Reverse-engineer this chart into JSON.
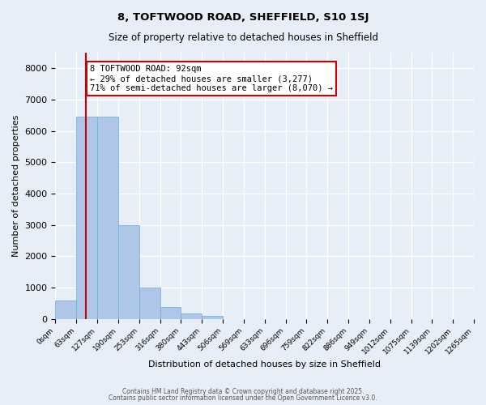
{
  "title1": "8, TOFTWOOD ROAD, SHEFFIELD, S10 1SJ",
  "title2": "Size of property relative to detached houses in Sheffield",
  "xlabel": "Distribution of detached houses by size in Sheffield",
  "ylabel": "Number of detached properties",
  "bar_values": [
    580,
    6450,
    6450,
    3000,
    1000,
    380,
    160,
    100,
    0,
    0,
    0,
    0,
    0,
    0,
    0,
    0,
    0,
    0,
    0,
    0
  ],
  "bar_labels": [
    "0sqm",
    "63sqm",
    "127sqm",
    "190sqm",
    "253sqm",
    "316sqm",
    "380sqm",
    "443sqm",
    "506sqm",
    "569sqm",
    "633sqm",
    "696sqm",
    "759sqm",
    "822sqm",
    "886sqm",
    "949sqm",
    "1012sqm",
    "1075sqm",
    "1139sqm",
    "1202sqm",
    "1265sqm"
  ],
  "bar_color": "#aec6e8",
  "bar_edge_color": "#6aacda",
  "vline_x": 1.46,
  "vline_color": "#cc0000",
  "annotation_text": "8 TOFTWOOD ROAD: 92sqm\n← 29% of detached houses are smaller (3,277)\n71% of semi-detached houses are larger (8,070) →",
  "annotation_box_color": "#ffffff",
  "annotation_box_edge": "#cc0000",
  "ylim": [
    0,
    8500
  ],
  "yticks": [
    0,
    1000,
    2000,
    3000,
    4000,
    5000,
    6000,
    7000,
    8000
  ],
  "bg_color": "#e8eef7",
  "grid_color": "#ffffff",
  "footer1": "Contains HM Land Registry data © Crown copyright and database right 2025.",
  "footer2": "Contains public sector information licensed under the Open Government Licence v3.0."
}
